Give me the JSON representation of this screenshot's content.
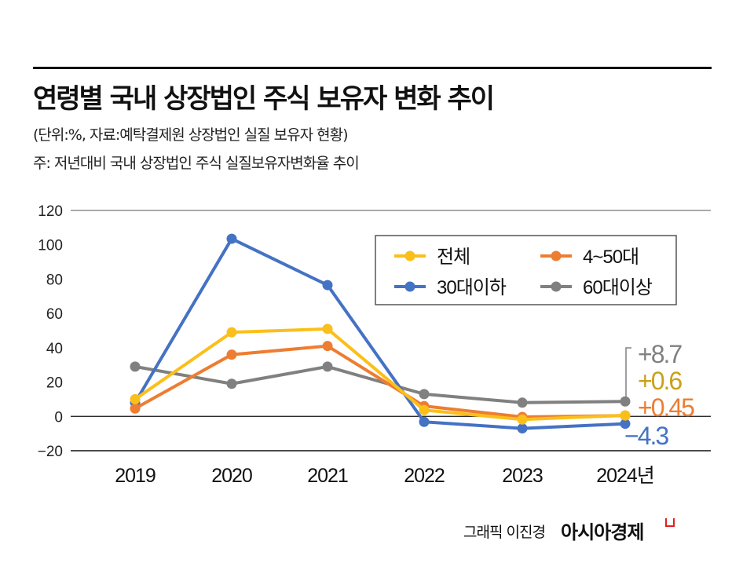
{
  "header": {
    "title": "연령별 국내 상장법인 주식 보유자 변화 추이",
    "source": "(단위:%, 자료:예탁결제원 상장법인 실질 보유자 현황)",
    "note": "주: 저년대비 국내 상장법인 주식 실질보유자변화율 추이"
  },
  "footer": {
    "credit": "그래픽 이진경",
    "brand": "아시아경제"
  },
  "chart_data": {
    "type": "line",
    "categories": [
      "2019",
      "2020",
      "2021",
      "2022",
      "2023",
      "2024년"
    ],
    "ylim": [
      -20,
      120
    ],
    "yticks": [
      "120",
      "100",
      "80",
      "60",
      "40",
      "20",
      "0",
      "−20"
    ],
    "ytick_values": [
      120,
      100,
      80,
      60,
      40,
      20,
      0,
      -20
    ],
    "grid": "horizontal at top, zero and bottom",
    "legend_position": "top-right",
    "series": [
      {
        "name": "전체",
        "color": "#FBBF1A",
        "values": [
          10,
          49,
          51,
          3.7,
          -1.8,
          0.6
        ],
        "end_label": "+0.6",
        "label_color": "#C9A019"
      },
      {
        "name": "4~50대",
        "color": "#ED7D31",
        "values": [
          4.6,
          36,
          41,
          6,
          -0.3,
          0.45
        ],
        "end_label": "+0.45",
        "label_color": "#ED7D31"
      },
      {
        "name": "30대이하",
        "color": "#4472C4",
        "values": [
          8,
          103.5,
          76.5,
          -3.2,
          -7,
          -4.3
        ],
        "end_label": "−4.3",
        "label_color": "#4472C4"
      },
      {
        "name": "60대이상",
        "color": "#808080",
        "values": [
          29,
          19,
          29,
          13,
          8,
          8.7
        ],
        "end_label": "+8.7",
        "label_color": "#808080"
      }
    ]
  }
}
